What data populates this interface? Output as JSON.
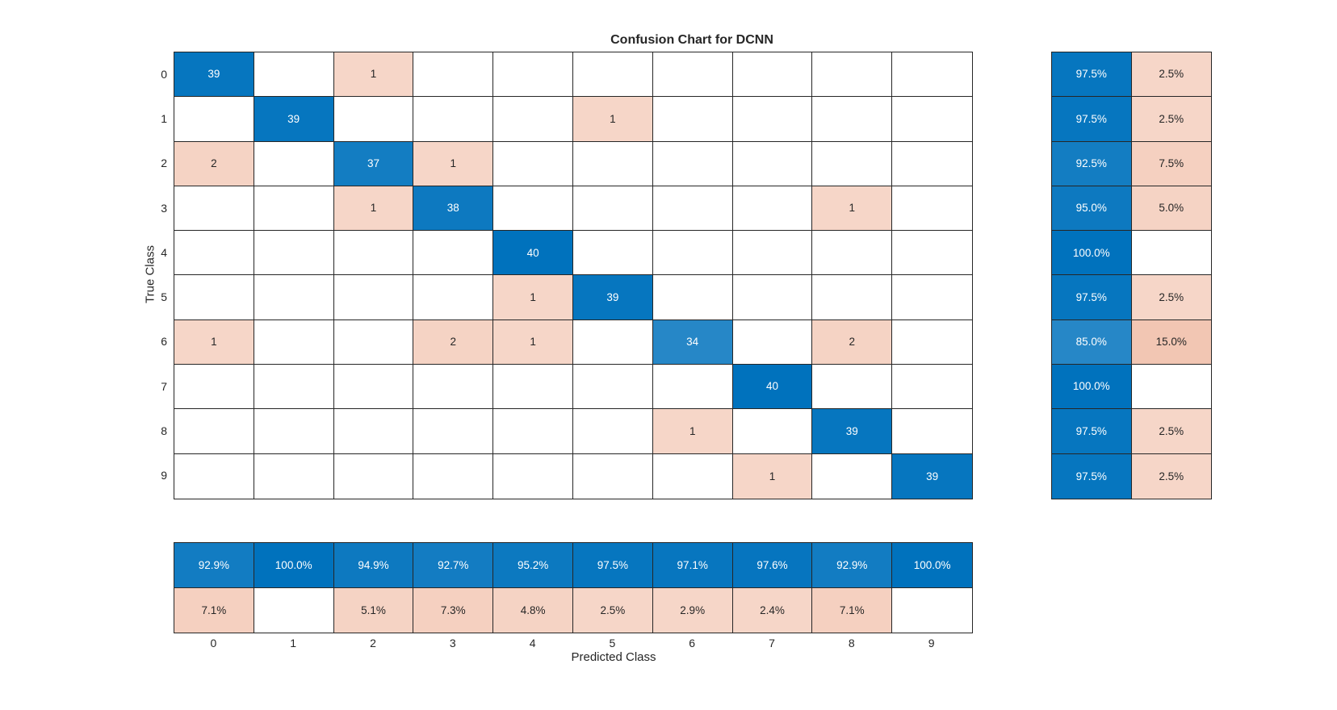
{
  "title": "Confusion Chart for DCNN",
  "axes": {
    "xlabel": "Predicted Class",
    "ylabel": "True Class"
  },
  "colors": {
    "diagonal_base": "#0072BD",
    "off_diagonal_base": "#D95319",
    "grid": "#262626",
    "label_text": "#262626",
    "cell_text_on_dark": "#FFFFFF"
  },
  "chart_data": {
    "type": "heatmap",
    "title": "Confusion Chart for DCNN",
    "xlabel": "Predicted Class",
    "ylabel": "True Class",
    "classes": [
      "0",
      "1",
      "2",
      "3",
      "4",
      "5",
      "6",
      "7",
      "8",
      "9"
    ],
    "per_class_observations": 40,
    "matrix": [
      [
        39,
        0,
        1,
        0,
        0,
        0,
        0,
        0,
        0,
        0
      ],
      [
        0,
        39,
        0,
        0,
        0,
        1,
        0,
        0,
        0,
        0
      ],
      [
        2,
        0,
        37,
        1,
        0,
        0,
        0,
        0,
        0,
        0
      ],
      [
        0,
        0,
        1,
        38,
        0,
        0,
        0,
        0,
        1,
        0
      ],
      [
        0,
        0,
        0,
        0,
        40,
        0,
        0,
        0,
        0,
        0
      ],
      [
        0,
        0,
        0,
        0,
        1,
        39,
        0,
        0,
        0,
        0
      ],
      [
        1,
        0,
        0,
        2,
        1,
        0,
        34,
        0,
        2,
        0
      ],
      [
        0,
        0,
        0,
        0,
        0,
        0,
        0,
        40,
        0,
        0
      ],
      [
        0,
        0,
        0,
        0,
        0,
        0,
        1,
        0,
        39,
        0
      ],
      [
        0,
        0,
        0,
        0,
        0,
        0,
        0,
        1,
        0,
        39
      ]
    ],
    "row_summary": {
      "correct_pct": [
        97.5,
        97.5,
        92.5,
        95.0,
        100.0,
        97.5,
        85.0,
        100.0,
        97.5,
        97.5
      ],
      "incorrect_pct": [
        2.5,
        2.5,
        7.5,
        5.0,
        null,
        2.5,
        15.0,
        null,
        2.5,
        2.5
      ]
    },
    "column_summary": {
      "correct_pct": [
        92.9,
        100.0,
        94.9,
        92.7,
        95.2,
        97.5,
        97.1,
        97.6,
        92.9,
        100.0
      ],
      "incorrect_pct": [
        7.1,
        null,
        5.1,
        7.3,
        4.8,
        2.5,
        2.9,
        2.4,
        7.1,
        null
      ]
    }
  }
}
